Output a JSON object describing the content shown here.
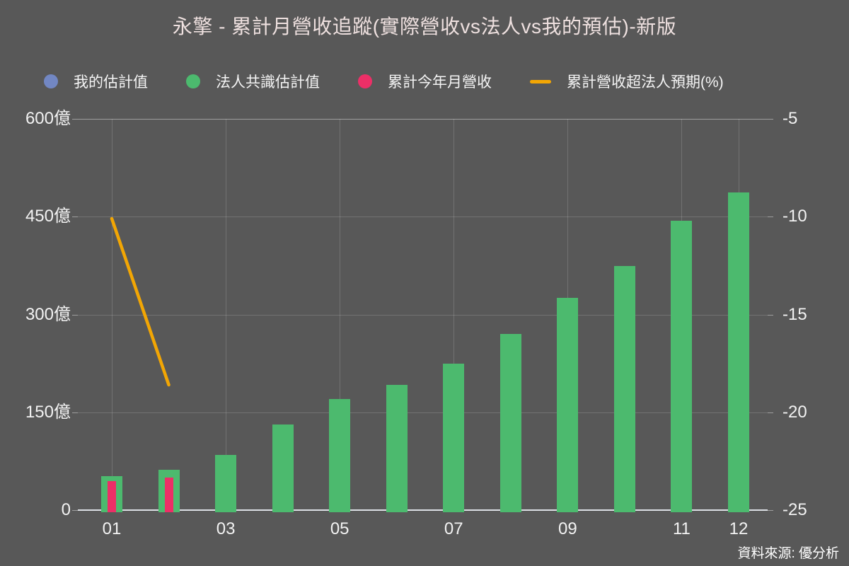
{
  "title": "永擎 - 累計月營收追蹤(實際營收vs法人vs我的預估)-新版",
  "source": "資料來源: 優分析",
  "colors": {
    "background": "#585858",
    "title_text": "#eee0df",
    "axis_text": "#f2f2f2",
    "legend_text": "#f5f5f5",
    "my_estimate": "#7287c3",
    "consensus": "#4cba6e",
    "actual": "#ec2f67",
    "surprise_line": "#f2a604",
    "gridline": "rgba(255,255,255,0.16)",
    "gridline_top": "rgba(255,255,255,0.42)",
    "axis_line": "rgba(235,240,245,0.9)"
  },
  "legend": [
    {
      "label": "我的估計值",
      "marker": "circle",
      "color_key": "my_estimate"
    },
    {
      "label": "法人共識估計值",
      "marker": "circle",
      "color_key": "consensus"
    },
    {
      "label": "累計今年月營收",
      "marker": "circle",
      "color_key": "actual"
    },
    {
      "label": "累計營收超法人預期(%)",
      "marker": "line",
      "color_key": "surprise_line"
    }
  ],
  "chart_data": {
    "type": "bar",
    "subtype": "dual-axis bar + line",
    "categories": [
      "01",
      "02",
      "03",
      "04",
      "05",
      "06",
      "07",
      "08",
      "09",
      "10",
      "11",
      "12"
    ],
    "x_tick_labels": [
      "01",
      "03",
      "05",
      "07",
      "09",
      "11",
      "12"
    ],
    "series": [
      {
        "name": "我的估計值",
        "kind": "bar",
        "axis": "left",
        "color_key": "my_estimate",
        "values": [
          null,
          null,
          null,
          null,
          null,
          null,
          null,
          null,
          null,
          null,
          null,
          null
        ]
      },
      {
        "name": "法人共識估計值",
        "kind": "bar",
        "axis": "left",
        "color_key": "consensus",
        "values": [
          52,
          62,
          85,
          131,
          170,
          192,
          225,
          270,
          326,
          374,
          444,
          487
        ]
      },
      {
        "name": "累計今年月營收",
        "kind": "bar",
        "axis": "left",
        "color_key": "actual",
        "values": [
          45,
          50,
          null,
          null,
          null,
          null,
          null,
          null,
          null,
          null,
          null,
          null
        ]
      },
      {
        "name": "累計營收超法人預期(%)",
        "kind": "line",
        "axis": "right",
        "color_key": "surprise_line",
        "values": [
          -10.1,
          -18.6,
          null,
          null,
          null,
          null,
          null,
          null,
          null,
          null,
          null,
          null
        ]
      }
    ],
    "left_axis": {
      "unit": "億",
      "range": [
        0,
        600
      ],
      "tick_values": [
        600,
        450,
        300,
        150,
        0
      ],
      "ticks": [
        "600億",
        "450億",
        "300億",
        "150億",
        "0"
      ]
    },
    "right_axis": {
      "unit": "%",
      "range": [
        -25,
        -5
      ],
      "tick_values": [
        -5,
        -10,
        -15,
        -20,
        -25
      ],
      "ticks": [
        "-5",
        "-10",
        "-15",
        "-20",
        "-25"
      ]
    },
    "grid": true,
    "legend_position": "top"
  }
}
